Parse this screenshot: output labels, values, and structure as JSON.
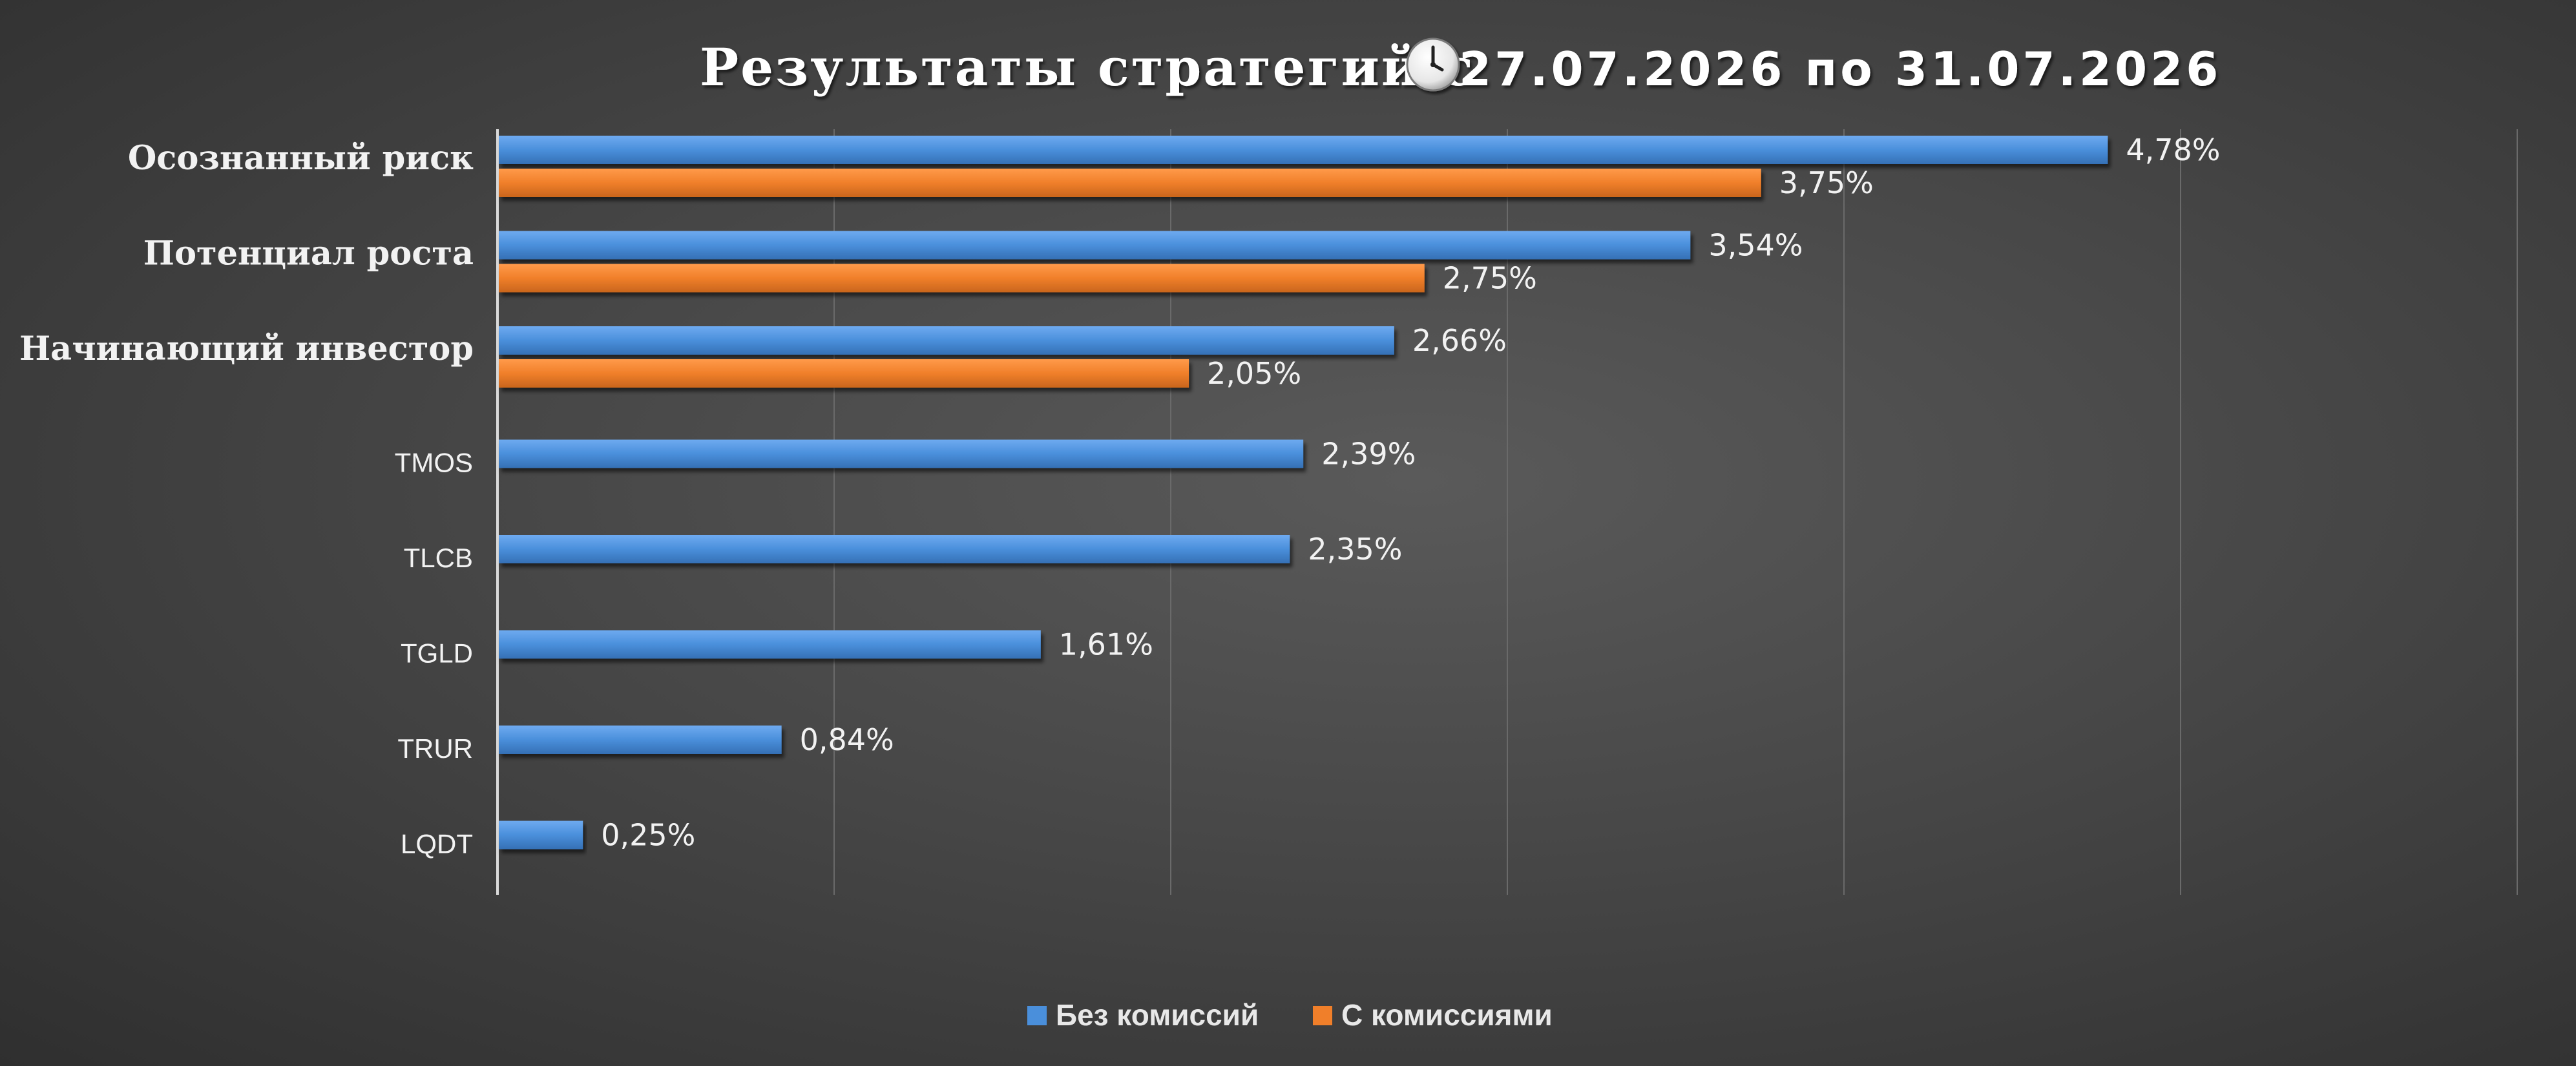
{
  "chart_data": {
    "type": "bar",
    "orientation": "horizontal",
    "title": "Результаты стратегий с",
    "title_dates": "27.07.2026 по 31.07.2026",
    "title_icon": "clock-icon",
    "categories": [
      "Осознанный риск",
      "Потенциал роста ",
      "Начинающий инвестор",
      "TMOS",
      "TLCB",
      "TGLD",
      "TRUR",
      "LQDT"
    ],
    "category_style": [
      "bold",
      "bold",
      "bold",
      "normal",
      "normal",
      "normal",
      "normal",
      "normal"
    ],
    "series": [
      {
        "name": "Без комиссий",
        "color": "#4a8fdb",
        "values": [
          4.78,
          3.54,
          2.66,
          2.39,
          2.35,
          1.61,
          0.84,
          0.25
        ],
        "labels": [
          "4,78%",
          "3,54%",
          "2,66%",
          "2,39%",
          "2,35%",
          "1,61%",
          "0,84%",
          "0,25%"
        ]
      },
      {
        "name": "С комиссиями",
        "color": "#f07f2a",
        "values": [
          3.75,
          2.75,
          2.05,
          null,
          null,
          null,
          null,
          null
        ],
        "labels": [
          "3,75%",
          "2,75%",
          "2,05%",
          null,
          null,
          null,
          null,
          null
        ]
      }
    ],
    "xlim": [
      0,
      6
    ],
    "grid": true,
    "legend_position": "bottom-center"
  }
}
